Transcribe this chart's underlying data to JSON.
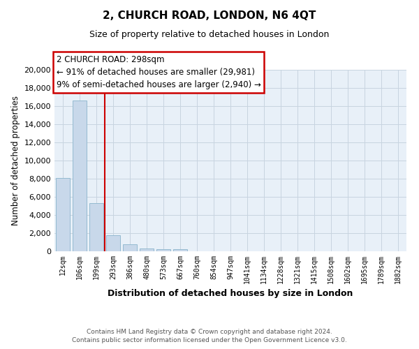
{
  "title": "2, CHURCH ROAD, LONDON, N6 4QT",
  "subtitle": "Size of property relative to detached houses in London",
  "bar_labels": [
    "12sqm",
    "106sqm",
    "199sqm",
    "293sqm",
    "386sqm",
    "480sqm",
    "573sqm",
    "667sqm",
    "760sqm",
    "854sqm",
    "947sqm",
    "1041sqm",
    "1134sqm",
    "1228sqm",
    "1321sqm",
    "1415sqm",
    "1508sqm",
    "1602sqm",
    "1695sqm",
    "1789sqm",
    "1882sqm"
  ],
  "bar_values": [
    8100,
    16600,
    5300,
    1750,
    800,
    300,
    250,
    250,
    0,
    0,
    0,
    0,
    0,
    0,
    0,
    0,
    0,
    0,
    0,
    0,
    0
  ],
  "bar_color": "#c8d8ea",
  "bar_edge_color": "#8ab4cc",
  "vline_color": "#cc0000",
  "vline_x": 2.5,
  "ylim": [
    0,
    20000
  ],
  "yticks": [
    0,
    2000,
    4000,
    6000,
    8000,
    10000,
    12000,
    14000,
    16000,
    18000,
    20000
  ],
  "ylabel": "Number of detached properties",
  "xlabel": "Distribution of detached houses by size in London",
  "annotation_title": "2 CHURCH ROAD: 298sqm",
  "annotation_line1": "← 91% of detached houses are smaller (29,981)",
  "annotation_line2": "9% of semi-detached houses are larger (2,940) →",
  "annotation_box_color": "#ffffff",
  "annotation_box_edge": "#cc0000",
  "footer_line1": "Contains HM Land Registry data © Crown copyright and database right 2024.",
  "footer_line2": "Contains public sector information licensed under the Open Government Licence v3.0.",
  "grid_color": "#c8d4e0",
  "background_color": "#e8f0f8"
}
